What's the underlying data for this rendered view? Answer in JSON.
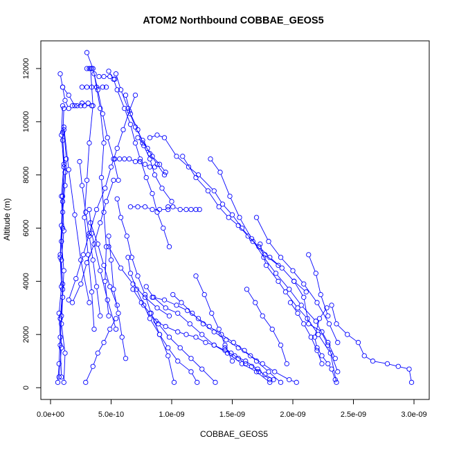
{
  "chart_data": {
    "type": "line",
    "title": "ATOM2 Northbound COBBAE_GEOS5",
    "xlabel": "COBBAE_GEOS5",
    "ylabel": "Altitude (m)",
    "xlim": [
      0,
      3e-09
    ],
    "ylim": [
      0,
      12600
    ],
    "x_ticks": [
      0,
      5e-10,
      1e-09,
      1.5e-09,
      2e-09,
      2.5e-09,
      3e-09
    ],
    "x_tick_labels": [
      "0.0e+00",
      "5.0e-10",
      "1.0e-09",
      "1.5e-09",
      "2.0e-09",
      "2.5e-09",
      "3.0e-09"
    ],
    "y_ticks": [
      0,
      2000,
      4000,
      6000,
      8000,
      10000,
      12000
    ],
    "y_tick_labels": [
      "0",
      "2000",
      "4000",
      "6000",
      "8000",
      "10000",
      "12000"
    ],
    "marker": "open-circle",
    "color": "#0000ff",
    "grid": false,
    "legend": "none",
    "series": [
      {
        "x": [
          6e-11,
          7e-11,
          8e-11,
          7e-11,
          9e-11,
          8e-11,
          1e-10,
          9e-11,
          1.1e-10,
          1e-10
        ],
        "y": [
          200,
          900,
          1900,
          2800,
          3800,
          4900,
          6000,
          7200,
          8400,
          9600
        ]
      },
      {
        "x": [
          1.1e-10,
          1.3e-10,
          1.2e-10,
          1e-10,
          9e-11,
          1.1e-10,
          1e-10,
          9e-11,
          1.2e-10,
          1.1e-10
        ],
        "y": [
          9700,
          8600,
          7600,
          6600,
          5500,
          4400,
          3400,
          2400,
          1300,
          200
        ]
      },
      {
        "x": [
          7e-11,
          9e-11,
          8e-11,
          1e-10,
          9e-11,
          1.1e-10,
          1e-10,
          1.2e-10,
          1e-10,
          1.1e-10
        ],
        "y": [
          400,
          1500,
          2600,
          3700,
          4800,
          5900,
          7000,
          8100,
          9300,
          10500
        ]
      },
      {
        "x": [
          1e-10,
          9e-11,
          1.1e-10,
          1e-10,
          9e-11,
          8e-11,
          1e-10,
          9e-11,
          8e-11,
          9e-11
        ],
        "y": [
          10600,
          9500,
          8300,
          7200,
          6100,
          5000,
          3900,
          2700,
          1600,
          400
        ]
      },
      {
        "x": [
          8e-11,
          1e-10,
          1.2e-10,
          1.5e-10,
          1.8e-10,
          2.2e-10,
          2.6e-10,
          3.1e-10
        ],
        "y": [
          11800,
          11300,
          10800,
          10500,
          10600,
          10600,
          10700,
          10700
        ]
      },
      {
        "x": [
          1e-10,
          1.5e-10,
          2e-10,
          2.5e-10,
          2.8e-10,
          3.4e-10
        ],
        "y": [
          11300,
          11000,
          10600,
          10600,
          10600,
          10600
        ]
      },
      {
        "x": [
          1.1e-10,
          1.5e-10,
          2e-10,
          2.5e-10,
          3.2e-10
        ],
        "y": [
          9800,
          8200,
          6500,
          4800,
          3200
        ]
      },
      {
        "x": [
          1.5e-10,
          2.1e-10,
          2.7e-10,
          3.2e-10,
          3.8e-10,
          4.5e-10,
          5e-10,
          5.5e-10,
          6e-10,
          6.5e-10,
          7e-10
        ],
        "y": [
          3300,
          4100,
          5000,
          5800,
          6700,
          7500,
          8300,
          9000,
          9700,
          10400,
          11000
        ]
      },
      {
        "x": [
          3.3e-10,
          3.5e-10,
          3.2e-10,
          3e-10,
          2.8e-10,
          3.1e-10,
          3.4e-10,
          3.6e-10
        ],
        "y": [
          12000,
          10600,
          9200,
          7800,
          6400,
          5000,
          3600,
          2200
        ]
      },
      {
        "x": [
          3.6e-10,
          4.1e-10,
          4.4e-10,
          4.2e-10,
          4.4e-10,
          4.6e-10,
          4.5e-10,
          4.8e-10
        ],
        "y": [
          11800,
          10500,
          9200,
          7900,
          6600,
          5300,
          4000,
          2700
        ]
      },
      {
        "x": [
          4.8e-10,
          5.2e-10,
          5.5e-10,
          6.1e-10,
          6.6e-10,
          7e-10,
          7.4e-10,
          7.9e-10,
          8.4e-10,
          8.8e-10,
          9.3e-10,
          9.8e-10
        ],
        "y": [
          11900,
          11600,
          11200,
          10500,
          9900,
          9200,
          8600,
          7900,
          7300,
          6600,
          6000,
          5300
        ]
      },
      {
        "x": [
          5.4e-10,
          5.8e-10,
          6.4e-10,
          7e-10,
          7.6e-10,
          8.2e-10,
          8.8e-10,
          9.4e-10
        ],
        "y": [
          11800,
          11200,
          10500,
          9800,
          9300,
          8800,
          8400,
          8000
        ]
      },
      {
        "x": [
          6.2e-10,
          6.6e-10,
          7.2e-10,
          7.7e-10,
          8.2e-10,
          8.6e-10,
          9.2e-10,
          1e-09
        ],
        "y": [
          11000,
          10300,
          9700,
          9100,
          8600,
          8000,
          7500,
          7000
        ]
      },
      {
        "x": [
          7.2e-10,
          7.6e-10,
          8e-10,
          8.4e-10,
          9e-10,
          9.5e-10
        ],
        "y": [
          9400,
          9200,
          9000,
          8700,
          8400,
          8100
        ]
      },
      {
        "x": [
          8.2e-10,
          8.8e-10,
          9.4e-10,
          1.04e-09,
          1.14e-09,
          1.22e-09,
          1.35e-09,
          1.42e-09,
          1.5e-09,
          1.58e-09,
          1.67e-09,
          1.77e-09,
          1.88e-09
        ],
        "y": [
          9400,
          9500,
          9400,
          8700,
          8300,
          8000,
          7400,
          6900,
          6500,
          6000,
          5500,
          5000,
          4600
        ]
      },
      {
        "x": [
          1.09e-09,
          1.2e-09,
          1.3e-09,
          1.39e-09,
          1.47e-09,
          1.55e-09,
          1.63e-09,
          1.72e-09,
          1.81e-09,
          1.91e-09,
          2.01e-09,
          2.11e-09
        ],
        "y": [
          8700,
          7900,
          7400,
          6800,
          6400,
          6100,
          5700,
          5300,
          4900,
          4500,
          4000,
          3600
        ]
      },
      {
        "x": [
          1.32e-09,
          1.4e-09,
          1.48e-09,
          1.56e-09,
          1.66e-09,
          1.76e-09,
          1.86e-09,
          1.97e-09,
          2.07e-09,
          2.19e-09,
          2.29e-09,
          2.37e-09
        ],
        "y": [
          8600,
          8100,
          7200,
          6400,
          5600,
          4900,
          4300,
          3700,
          3100,
          2500,
          1600,
          600
        ]
      },
      {
        "x": [
          1.7e-09,
          1.8e-09,
          1.9e-09,
          2e-09,
          2.09e-09,
          2.2e-09,
          2.3e-09,
          2.37e-09
        ],
        "y": [
          6400,
          5500,
          4900,
          4400,
          3900,
          3200,
          2400,
          1700
        ]
      },
      {
        "x": [
          1.73e-09,
          1.78e-09,
          1.88e-09,
          1.94e-09,
          2.04e-09,
          2.12e-09,
          2.21e-09,
          2.31e-09,
          2.36e-09
        ],
        "y": [
          5400,
          4600,
          4000,
          3600,
          3000,
          2600,
          2000,
          1300,
          200
        ]
      },
      {
        "x": [
          2.01e-09,
          2.09e-09,
          2.13e-09,
          2.24e-09,
          2.29e-09,
          2.35e-09
        ],
        "y": [
          4000,
          3400,
          2400,
          2100,
          1700,
          1100
        ]
      },
      {
        "x": [
          2.32e-09,
          2.36e-09,
          2.45e-09,
          2.54e-09,
          2.59e-09,
          2.66e-09,
          2.78e-09,
          2.87e-09,
          2.96e-09,
          2.98e-09
        ],
        "y": [
          3100,
          2400,
          2000,
          1700,
          1200,
          1000,
          900,
          800,
          700,
          200
        ]
      },
      {
        "x": [
          2.28e-09,
          2.22e-09,
          2.18e-09,
          2.2e-09,
          2.24e-09,
          2.29e-09,
          2.32e-09,
          2.35e-09
        ],
        "y": [
          3000,
          2600,
          1900,
          1500,
          1200,
          900,
          700,
          300
        ]
      },
      {
        "x": [
          9.7e-10,
          1.01e-09,
          1.07e-09,
          1.12e-09,
          1.16e-09,
          1.2e-09,
          1.23e-09
        ],
        "y": [
          6800,
          6800,
          6700,
          6700,
          6700,
          6700,
          6700
        ]
      },
      {
        "x": [
          6.6e-10,
          7.2e-10,
          7.8e-10,
          8.4e-10,
          9e-10,
          9.7e-10
        ],
        "y": [
          6800,
          6800,
          6800,
          6700,
          6700,
          6700
        ]
      },
      {
        "x": [
          5.3e-10,
          5.7e-10,
          6.1e-10,
          6.5e-10,
          7e-10,
          7.4e-10,
          7.8e-10,
          8.2e-10,
          8.6e-10
        ],
        "y": [
          8600,
          8600,
          8600,
          8600,
          8500,
          8500,
          8400,
          8300,
          8300
        ]
      },
      {
        "x": [
          3.3e-10,
          3.9e-10,
          4.4e-10,
          4.9e-10,
          5.5e-10
        ],
        "y": [
          6200,
          5400,
          4600,
          3800,
          3100
        ]
      },
      {
        "x": [
          5.5e-10,
          5.8e-10,
          6.3e-10,
          6.7e-10,
          7.2e-10,
          7.8e-10,
          8.3e-10,
          9e-10,
          9.7e-10,
          1.02e-09
        ],
        "y": [
          7100,
          6400,
          5700,
          4900,
          4200,
          3500,
          2800,
          2000,
          1200,
          200
        ]
      },
      {
        "x": [
          6.4e-10,
          6.6e-10,
          7.1e-10,
          7.7e-10,
          8.2e-10,
          9e-10,
          9.7e-10,
          1.05e-09,
          1.16e-09,
          1.21e-09
        ],
        "y": [
          4900,
          4300,
          3700,
          3100,
          2600,
          2000,
          1500,
          1000,
          600,
          200
        ]
      },
      {
        "x": [
          6.8e-10,
          7.5e-10,
          8.2e-10,
          8.9e-10,
          9.8e-10,
          1.07e-09,
          1.16e-09,
          1.25e-09,
          1.36e-09
        ],
        "y": [
          3700,
          3200,
          2800,
          2400,
          1900,
          1500,
          1100,
          700,
          200
        ]
      },
      {
        "x": [
          7.9e-10,
          8.5e-10,
          9.5e-10,
          1.05e-09,
          1.15e-09,
          1.25e-09,
          1.35e-09,
          1.46e-09,
          1.58e-09,
          1.7e-09,
          1.81e-09
        ],
        "y": [
          3800,
          3400,
          3000,
          2800,
          2400,
          2000,
          1600,
          1300,
          900,
          600,
          200
        ]
      },
      {
        "x": [
          8.4e-10,
          9.4e-10,
          1.04e-09,
          1.13e-09,
          1.22e-09,
          1.31e-09,
          1.41e-09,
          1.51e-09,
          1.6e-09,
          1.7e-09,
          1.8e-09,
          1.9e-09
        ],
        "y": [
          3400,
          3300,
          3100,
          2900,
          2600,
          2300,
          2000,
          1700,
          1400,
          1000,
          600,
          200
        ]
      },
      {
        "x": [
          1.01e-09,
          1.08e-09,
          1.17e-09,
          1.26e-09,
          1.35e-09,
          1.45e-09,
          1.55e-09,
          1.65e-09,
          1.75e-09,
          1.85e-09,
          1.97e-09,
          2.03e-09
        ],
        "y": [
          3500,
          3200,
          2800,
          2400,
          2100,
          1800,
          1500,
          1200,
          900,
          600,
          300,
          200
        ]
      },
      {
        "x": [
          3.2e-10,
          3.4e-10,
          4.1e-10,
          4.7e-10,
          5.4e-10
        ],
        "y": [
          6700,
          5800,
          4400,
          3300,
          2200
        ]
      },
      {
        "x": [
          2.4e-10,
          2.6e-10,
          2.9e-10,
          3.2e-10,
          3.5e-10,
          3.8e-10,
          4.1e-10
        ],
        "y": [
          8500,
          7600,
          6600,
          5700,
          4800,
          3800,
          2700
        ]
      },
      {
        "x": [
          4.8e-10,
          5e-10,
          5.2e-10,
          5.6e-10,
          5.9e-10,
          6.2e-10
        ],
        "y": [
          5700,
          4800,
          3700,
          2800,
          1900,
          1100
        ]
      },
      {
        "x": [
          4.8e-10,
          5.8e-10,
          6.8e-10,
          7.8e-10,
          8.8e-10,
          9.8e-10
        ],
        "y": [
          5300,
          4500,
          3900,
          3400,
          3000,
          2700
        ]
      },
      {
        "x": [
          2.9e-10,
          3.5e-10,
          3.9e-10,
          4.4e-10,
          4.9e-10,
          5.4e-10
        ],
        "y": [
          200,
          800,
          1300,
          1700,
          2200,
          2600
        ]
      },
      {
        "x": [
          1.8e-10,
          2.5e-10,
          3e-10,
          3.6e-10,
          4.1e-10,
          4.6e-10,
          5.2e-10
        ],
        "y": [
          3200,
          3900,
          4700,
          5400,
          6200,
          7000,
          7800
        ]
      },
      {
        "x": [
          3e-10,
          3.5e-10,
          3.9e-10,
          4.3e-10,
          4.7e-10,
          5.2e-10,
          5.6e-10
        ],
        "y": [
          12600,
          12000,
          11200,
          10300,
          9400,
          8600,
          7800
        ]
      },
      {
        "x": [
          2.6e-10,
          3e-10,
          3.4e-10,
          3.8e-10,
          4.3e-10,
          4.6e-10
        ],
        "y": [
          11300,
          11300,
          11300,
          11300,
          11300,
          11300
        ]
      },
      {
        "x": [
          3e-10,
          3.2e-10,
          3.4e-10
        ],
        "y": [
          12000,
          12000,
          12000
        ]
      },
      {
        "x": [
          4e-10,
          4.4e-10,
          4.9e-10,
          5.3e-10
        ],
        "y": [
          11700,
          11700,
          11700,
          11600
        ]
      },
      {
        "x": [
          1.2e-09,
          1.27e-09,
          1.33e-09,
          1.39e-09,
          1.44e-09,
          1.5e-09
        ],
        "y": [
          4200,
          3500,
          2800,
          2200,
          1600,
          1000
        ]
      },
      {
        "x": [
          1.62e-09,
          1.69e-09,
          1.75e-09,
          1.83e-09,
          1.9e-09,
          1.95e-09
        ],
        "y": [
          3700,
          3200,
          2700,
          2200,
          1600,
          900
        ]
      },
      {
        "x": [
          2.13e-09,
          2.19e-09,
          2.23e-09,
          2.29e-09
        ],
        "y": [
          5000,
          4300,
          3500,
          2700
        ]
      },
      {
        "x": [
          1.98e-09,
          2.04e-09,
          2.09e-09,
          2.15e-09,
          2.2e-09,
          2.24e-09
        ],
        "y": [
          3200,
          2800,
          2400,
          1900,
          1400,
          900
        ]
      },
      {
        "x": [
          1.44e-09,
          1.49e-09,
          1.55e-09,
          1.61e-09,
          1.66e-09,
          1.72e-09,
          1.77e-09,
          1.84e-09
        ],
        "y": [
          1500,
          1300,
          1100,
          900,
          800,
          600,
          500,
          300
        ]
      },
      {
        "x": [
          8.7e-10,
          9.5e-10,
          1.05e-09,
          1.12e-09,
          1.2e-09,
          1.28e-09,
          1.35e-09,
          1.44e-09,
          1.52e-09,
          1.61e-09,
          1.71e-09,
          1.81e-09
        ],
        "y": [
          2500,
          2300,
          2100,
          2000,
          1900,
          1700,
          1600,
          1400,
          1200,
          1000,
          700,
          300
        ]
      }
    ]
  }
}
